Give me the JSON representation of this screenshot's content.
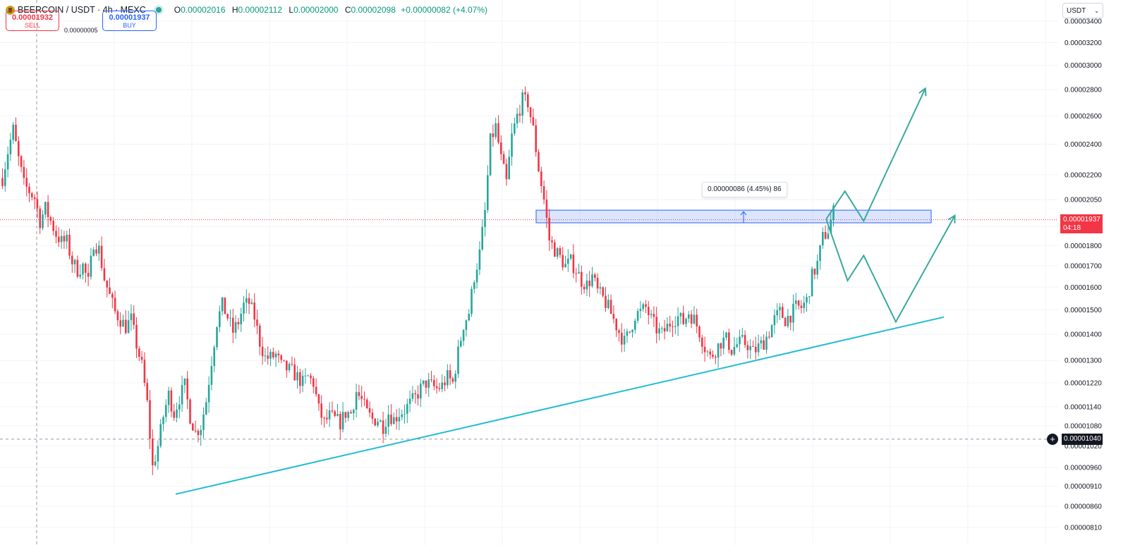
{
  "header": {
    "symbol": "BEERCOIN / USDT · 4h · MEXC",
    "o_label": "O",
    "o_value": "0.00002016",
    "h_label": "H",
    "h_value": "0.00002112",
    "l_label": "L",
    "l_value": "0.00002000",
    "c_label": "C",
    "c_value": "0.00002098",
    "change": "+0.00000082 (+4.07%)"
  },
  "trade": {
    "sell_price": "0.00001932",
    "sell_label": "SELL",
    "spread": "0.00000005",
    "buy_price": "0.00001937",
    "buy_label": "BUY"
  },
  "currency": {
    "selected": "USDT"
  },
  "price_label": {
    "price": "0.00001937",
    "countdown": "04:18"
  },
  "crosshair": {
    "price": "0.00001040"
  },
  "measure_tooltip": "0.00000086 (4.45%) 86",
  "colors": {
    "up": "#26a69a",
    "down": "#f23645",
    "trendline": "#22bcd1",
    "projection": "#3aa99c",
    "zone": "#2962ff"
  },
  "chart_data": {
    "type": "candlestick",
    "y_axis_scale": "log",
    "y_ticks": [
      "0.00003400",
      "0.00003200",
      "0.00003000",
      "0.00002800",
      "0.00002600",
      "0.00002400",
      "0.00002200",
      "0.00002050",
      "0.00001900",
      "0.00001800",
      "0.00001700",
      "0.00001600",
      "0.00001500",
      "0.00001400",
      "0.00001300",
      "0.00001220",
      "0.00001140",
      "0.00001080",
      "0.00001020",
      "0.00000960",
      "0.00000910",
      "0.00000860",
      "0.00000810"
    ],
    "ylim": [
      8.1e-06,
      3.4e-05
    ],
    "grid": true,
    "close_path": [
      [
        0,
        2.18e-05
      ],
      [
        2,
        2.35e-05
      ],
      [
        4,
        2.5e-05
      ],
      [
        6,
        2.3e-05
      ],
      [
        8,
        2.14e-05
      ],
      [
        10,
        2.1e-05
      ],
      [
        12,
        2.06e-05
      ],
      [
        14,
        1.93e-05
      ],
      [
        16,
        2e-05
      ],
      [
        18,
        1.93e-05
      ],
      [
        20,
        1.86e-05
      ],
      [
        22,
        1.82e-05
      ],
      [
        24,
        1.82e-05
      ],
      [
        26,
        1.72e-05
      ],
      [
        28,
        1.68e-05
      ],
      [
        30,
        1.7e-05
      ],
      [
        32,
        1.62e-05
      ],
      [
        34,
        1.82e-05
      ],
      [
        36,
        1.78e-05
      ],
      [
        38,
        1.64e-05
      ],
      [
        40,
        1.56e-05
      ],
      [
        42,
        1.49e-05
      ],
      [
        44,
        1.46e-05
      ],
      [
        46,
        1.43e-05
      ],
      [
        48,
        1.46e-05
      ],
      [
        50,
        1.36e-05
      ],
      [
        52,
        1.28e-05
      ],
      [
        54,
        1.15e-05
      ],
      [
        56,
        9.6e-06
      ],
      [
        58,
        1.02e-05
      ],
      [
        60,
        1.11e-05
      ],
      [
        62,
        1.18e-05
      ],
      [
        64,
        1.12e-05
      ],
      [
        66,
        1.17e-05
      ],
      [
        68,
        1.21e-05
      ],
      [
        70,
        1.11e-05
      ],
      [
        72,
        1.06e-05
      ],
      [
        74,
        1.08e-05
      ],
      [
        76,
        1.16e-05
      ],
      [
        78,
        1.3e-05
      ],
      [
        80,
        1.45e-05
      ],
      [
        82,
        1.52e-05
      ],
      [
        84,
        1.47e-05
      ],
      [
        86,
        1.41e-05
      ],
      [
        88,
        1.45e-05
      ],
      [
        90,
        1.52e-05
      ],
      [
        92,
        1.53e-05
      ],
      [
        94,
        1.47e-05
      ],
      [
        96,
        1.37e-05
      ],
      [
        98,
        1.31e-05
      ],
      [
        100,
        1.31e-05
      ],
      [
        102,
        1.32e-05
      ],
      [
        104,
        1.28e-05
      ],
      [
        106,
        1.27e-05
      ],
      [
        108,
        1.26e-05
      ],
      [
        110,
        1.24e-05
      ],
      [
        112,
        1.22e-05
      ],
      [
        114,
        1.24e-05
      ],
      [
        116,
        1.22e-05
      ],
      [
        118,
        1.13e-05
      ],
      [
        120,
        1.09e-05
      ],
      [
        122,
        1.11e-05
      ],
      [
        124,
        1.1e-05
      ],
      [
        126,
        1.09e-05
      ],
      [
        128,
        1.12e-05
      ],
      [
        130,
        1.12e-05
      ],
      [
        132,
        1.19e-05
      ],
      [
        134,
        1.16e-05
      ],
      [
        136,
        1.12e-05
      ],
      [
        138,
        1.1e-05
      ],
      [
        140,
        1.1e-05
      ],
      [
        142,
        1.08e-05
      ],
      [
        144,
        1.12e-05
      ],
      [
        146,
        1.1e-05
      ],
      [
        148,
        1.12e-05
      ],
      [
        150,
        1.13e-05
      ],
      [
        152,
        1.15e-05
      ],
      [
        154,
        1.17e-05
      ],
      [
        156,
        1.2e-05
      ],
      [
        158,
        1.22e-05
      ],
      [
        160,
        1.21e-05
      ],
      [
        162,
        1.2e-05
      ],
      [
        164,
        1.21e-05
      ],
      [
        166,
        1.24e-05
      ],
      [
        168,
        1.22e-05
      ],
      [
        170,
        1.33e-05
      ],
      [
        172,
        1.44e-05
      ],
      [
        174,
        1.49e-05
      ],
      [
        176,
        1.65e-05
      ],
      [
        178,
        1.76e-05
      ],
      [
        180,
        1.98e-05
      ],
      [
        182,
        2.42e-05
      ],
      [
        184,
        2.52e-05
      ],
      [
        186,
        2.3e-05
      ],
      [
        188,
        2.15e-05
      ],
      [
        190,
        2.45e-05
      ],
      [
        192,
        2.6e-05
      ],
      [
        194,
        2.72e-05
      ],
      [
        196,
        2.7e-05
      ],
      [
        198,
        2.5e-05
      ],
      [
        200,
        2.24e-05
      ],
      [
        202,
        2.05e-05
      ],
      [
        204,
        1.83e-05
      ],
      [
        206,
        1.78e-05
      ],
      [
        208,
        1.74e-05
      ],
      [
        210,
        1.7e-05
      ],
      [
        212,
        1.72e-05
      ],
      [
        214,
        1.68e-05
      ],
      [
        216,
        1.63e-05
      ],
      [
        218,
        1.61e-05
      ],
      [
        220,
        1.65e-05
      ],
      [
        222,
        1.58e-05
      ],
      [
        224,
        1.55e-05
      ],
      [
        226,
        1.51e-05
      ],
      [
        228,
        1.46e-05
      ],
      [
        230,
        1.41e-05
      ],
      [
        232,
        1.37e-05
      ],
      [
        234,
        1.41e-05
      ],
      [
        236,
        1.48e-05
      ],
      [
        238,
        1.49e-05
      ],
      [
        240,
        1.51e-05
      ],
      [
        242,
        1.46e-05
      ],
      [
        244,
        1.42e-05
      ],
      [
        246,
        1.4e-05
      ],
      [
        248,
        1.43e-05
      ],
      [
        250,
        1.46e-05
      ],
      [
        252,
        1.47e-05
      ],
      [
        254,
        1.45e-05
      ],
      [
        256,
        1.49e-05
      ],
      [
        258,
        1.46e-05
      ],
      [
        260,
        1.41e-05
      ],
      [
        262,
        1.35e-05
      ],
      [
        264,
        1.31e-05
      ],
      [
        266,
        1.34e-05
      ],
      [
        268,
        1.37e-05
      ],
      [
        270,
        1.38e-05
      ],
      [
        272,
        1.34e-05
      ],
      [
        274,
        1.36e-05
      ],
      [
        276,
        1.37e-05
      ],
      [
        278,
        1.36e-05
      ],
      [
        280,
        1.33e-05
      ],
      [
        282,
        1.35e-05
      ],
      [
        284,
        1.37e-05
      ],
      [
        286,
        1.41e-05
      ],
      [
        288,
        1.46e-05
      ],
      [
        290,
        1.49e-05
      ],
      [
        292,
        1.46e-05
      ],
      [
        294,
        1.48e-05
      ],
      [
        296,
        1.51e-05
      ],
      [
        298,
        1.51e-05
      ],
      [
        300,
        1.54e-05
      ],
      [
        302,
        1.65e-05
      ],
      [
        304,
        1.71e-05
      ],
      [
        306,
        1.84e-05
      ],
      [
        308,
        1.88e-05
      ],
      [
        310,
        1.98e-05
      ]
    ],
    "resistance_zone": {
      "top": 1.99e-05,
      "bottom": 1.92e-05
    },
    "current_price": 1.937e-05,
    "crosshair_price": 1.04e-05,
    "trendline": {
      "from": [
        62,
        8.9e-06
      ],
      "to": [
        370,
        1.47e-05
      ]
    },
    "projection_path_up": [
      [
        307,
        1.94e-05
      ],
      [
        314,
        2.1e-05
      ],
      [
        321,
        1.93e-05
      ],
      [
        344,
        2.81e-05
      ]
    ],
    "projection_path_down": [
      [
        307,
        1.94e-05
      ],
      [
        315,
        1.63e-05
      ],
      [
        321,
        1.75e-05
      ],
      [
        333,
        1.45e-05
      ],
      [
        355,
        1.96e-05
      ]
    ]
  }
}
